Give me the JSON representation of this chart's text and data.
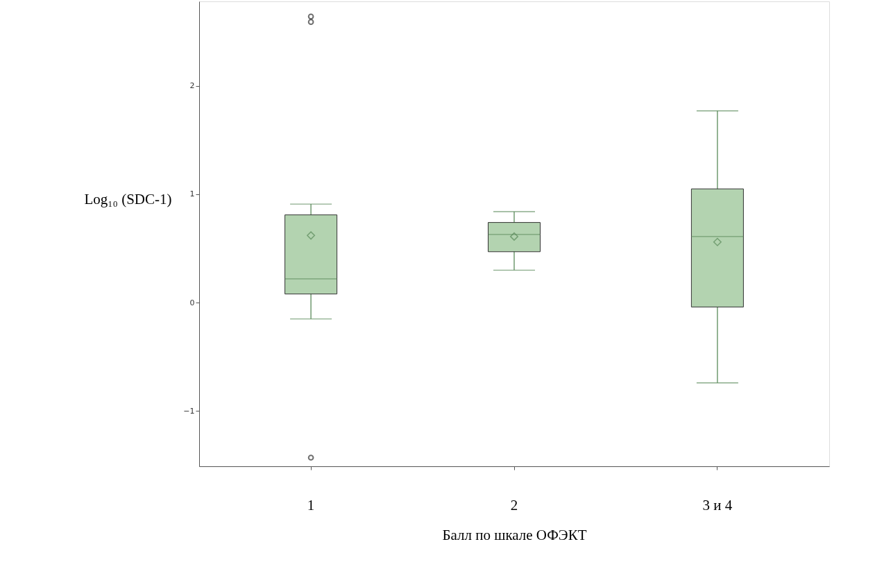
{
  "chart_data": {
    "type": "box",
    "xlabel": "Балл по шкале ОФЭКТ",
    "ylabel": "Log₁₀ (SDC-1)",
    "categories": [
      "1",
      "2",
      "3 и 4"
    ],
    "ylim": [
      -1.51,
      2.78
    ],
    "yticks": [
      -1,
      0,
      1,
      2
    ],
    "grid": false,
    "series": [
      {
        "color": "#b3d3b0",
        "boxes": [
          {
            "low": -0.15,
            "q1": 0.08,
            "median": 0.22,
            "q3": 0.81,
            "high": 0.91,
            "mean": 0.62,
            "outliers": [
              2.64,
              2.59,
              -1.43
            ]
          },
          {
            "low": 0.3,
            "q1": 0.47,
            "median": 0.63,
            "q3": 0.74,
            "high": 0.84,
            "mean": 0.61
          },
          {
            "low": -0.74,
            "q1": -0.04,
            "median": 0.61,
            "q3": 1.05,
            "high": 1.77,
            "mean": 0.56
          }
        ]
      }
    ]
  }
}
